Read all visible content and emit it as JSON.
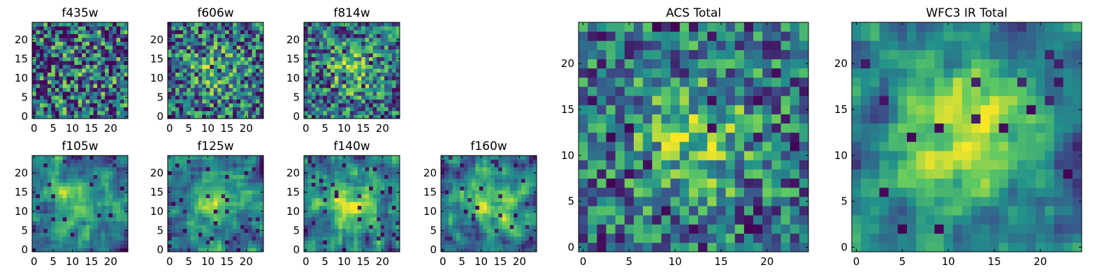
{
  "colormap": [
    "#440154",
    "#3b528b",
    "#21918c",
    "#5ec962",
    "#fde725"
  ],
  "chart_data": [
    {
      "type": "heatmap",
      "title": "f435w",
      "grid_size": 25,
      "xticks": [
        0,
        5,
        10,
        15,
        20
      ],
      "yticks": [
        0,
        5,
        10,
        15,
        20
      ],
      "xlim": [
        0,
        25
      ],
      "ylim": [
        0,
        25
      ],
      "grid": false,
      "pattern": {
        "seed": 11,
        "blur": 0,
        "center": 0.05,
        "noise": 0.95,
        "dark_frac": 0.09
      }
    },
    {
      "type": "heatmap",
      "title": "f606w",
      "grid_size": 25,
      "xticks": [
        0,
        5,
        10,
        15,
        20
      ],
      "yticks": [
        0,
        5,
        10,
        15,
        20
      ],
      "xlim": [
        0,
        25
      ],
      "ylim": [
        0,
        25
      ],
      "grid": false,
      "pattern": {
        "seed": 23,
        "blur": 0,
        "center": 0.25,
        "noise": 0.8,
        "dark_frac": 0.05
      }
    },
    {
      "type": "heatmap",
      "title": "f814w",
      "grid_size": 25,
      "xticks": [
        0,
        5,
        10,
        15,
        20
      ],
      "yticks": [
        0,
        5,
        10,
        15,
        20
      ],
      "xlim": [
        0,
        25
      ],
      "ylim": [
        0,
        25
      ],
      "grid": false,
      "pattern": {
        "seed": 37,
        "blur": 0,
        "center": 0.3,
        "noise": 0.75,
        "dark_frac": 0.06
      }
    },
    {
      "type": "heatmap",
      "title": "f105w",
      "grid_size": 25,
      "xticks": [
        0,
        5,
        10,
        15,
        20
      ],
      "yticks": [
        0,
        5,
        10,
        15,
        20
      ],
      "xlim": [
        0,
        25
      ],
      "ylim": [
        0,
        25
      ],
      "grid": false,
      "pattern": {
        "seed": 41,
        "blur": 1,
        "center": 0.35,
        "noise": 0.75,
        "dark_frac": 0.04
      }
    },
    {
      "type": "heatmap",
      "title": "f125w",
      "grid_size": 25,
      "xticks": [
        0,
        5,
        10,
        15,
        20
      ],
      "yticks": [
        0,
        5,
        10,
        15,
        20
      ],
      "xlim": [
        0,
        25
      ],
      "ylim": [
        0,
        25
      ],
      "grid": false,
      "pattern": {
        "seed": 53,
        "blur": 1,
        "center": 0.35,
        "noise": 0.75,
        "dark_frac": 0.04
      }
    },
    {
      "type": "heatmap",
      "title": "f140w",
      "grid_size": 25,
      "xticks": [
        0,
        5,
        10,
        15,
        20
      ],
      "yticks": [
        0,
        5,
        10,
        15,
        20
      ],
      "xlim": [
        0,
        25
      ],
      "ylim": [
        0,
        25
      ],
      "grid": false,
      "pattern": {
        "seed": 67,
        "blur": 1,
        "center": 0.4,
        "noise": 0.75,
        "dark_frac": 0.05
      }
    },
    {
      "type": "heatmap",
      "title": "f160w",
      "grid_size": 25,
      "xticks": [
        0,
        5,
        10,
        15,
        20
      ],
      "yticks": [
        0,
        5,
        10,
        15,
        20
      ],
      "xlim": [
        0,
        25
      ],
      "ylim": [
        0,
        25
      ],
      "grid": false,
      "pattern": {
        "seed": 79,
        "blur": 1,
        "center": 0.45,
        "noise": 0.7,
        "dark_frac": 0.04
      }
    },
    {
      "type": "heatmap",
      "title": "ACS Total",
      "grid_size": 25,
      "xticks": [
        0,
        5,
        10,
        15,
        20
      ],
      "yticks": [
        0,
        5,
        10,
        15,
        20
      ],
      "xlim": [
        0,
        25
      ],
      "ylim": [
        0,
        25
      ],
      "grid": false,
      "pattern": {
        "seed": 97,
        "blur": 0,
        "center": 0.35,
        "noise": 0.7,
        "dark_frac": 0.06
      }
    },
    {
      "type": "heatmap",
      "title": "WFC3 IR Total",
      "grid_size": 25,
      "xticks": [
        0,
        5,
        10,
        15,
        20
      ],
      "yticks": [
        0,
        5,
        10,
        15,
        20
      ],
      "xlim": [
        0,
        25
      ],
      "ylim": [
        0,
        25
      ],
      "grid": false,
      "pattern": {
        "seed": 113,
        "blur": 1,
        "center": 0.55,
        "noise": 0.6,
        "dark_frac": 0.04
      }
    }
  ]
}
